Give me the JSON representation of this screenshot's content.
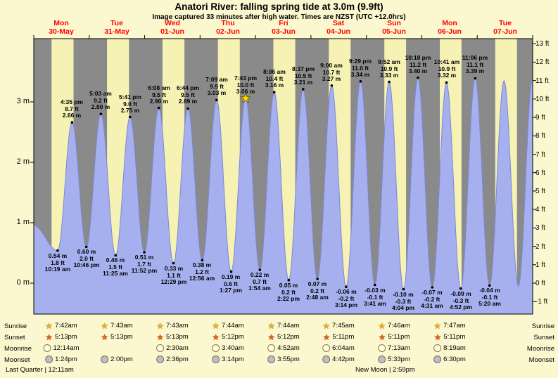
{
  "title": "Anatori River: falling spring tide at 3.0m (9.9ft)",
  "subtitle": "Image captured 33 minutes after high water. Times are NZST (UTC +12.0hrs)",
  "colors": {
    "page_bg": "#FBF8D0",
    "day_band": "#F6F2B4",
    "night_band": "#8A8A8A",
    "tide_fill": "#A6B0EE",
    "tide_stroke": "#7B87D8",
    "day_label_red": "#FF0000",
    "sunrise_star": "#F2AE24",
    "sunset_star": "#DD5F1C",
    "moonrise_circle": "#FDFBE8",
    "moonset_circle": "#BEBEBE",
    "capture_star": "#FFD700"
  },
  "days": [
    {
      "name": "Mon",
      "date": "30-May"
    },
    {
      "name": "Tue",
      "date": "31-May"
    },
    {
      "name": "Wed",
      "date": "01-Jun"
    },
    {
      "name": "Thu",
      "date": "02-Jun"
    },
    {
      "name": "Fri",
      "date": "03-Jun"
    },
    {
      "name": "Sat",
      "date": "04-Jun"
    },
    {
      "name": "Sun",
      "date": "05-Jun"
    },
    {
      "name": "Mon",
      "date": "06-Jun"
    },
    {
      "name": "Tue",
      "date": "07-Jun"
    }
  ],
  "y_axis": {
    "left": [
      "0 m",
      "1 m",
      "2 m",
      "3 m"
    ],
    "right": [
      "-1 ft",
      "0 ft",
      "1 ft",
      "2 ft",
      "3 ft",
      "4 ft",
      "5 ft",
      "6 ft",
      "7 ft",
      "8 ft",
      "9 ft",
      "10 ft",
      "11 ft",
      "12 ft",
      "13 ft"
    ]
  },
  "chart_data": {
    "type": "area",
    "title": "Anatori River tide heights",
    "ylabel_left": "metres",
    "ylabel_right": "feet",
    "y_range_m": [
      -0.51,
      4.05
    ],
    "t_range": [
      0,
      216
    ],
    "grid": false,
    "events": [
      {
        "type": "low",
        "day": "Mon 30-May",
        "time": "10:19 am",
        "m": "0.54",
        "ft": "1.8",
        "t": 10.32
      },
      {
        "type": "high",
        "day": "Mon 30-May",
        "time": "4:35 pm",
        "m": "2.66",
        "ft": "8.7",
        "t": 16.58
      },
      {
        "type": "low",
        "day": "Mon 30-May",
        "time": "10:46 pm",
        "m": "0.60",
        "ft": "2.0",
        "t": 22.77
      },
      {
        "type": "high",
        "day": "Tue 31-May",
        "time": "5:03 am",
        "m": "2.80",
        "ft": "9.2",
        "t": 29.05
      },
      {
        "type": "low",
        "day": "Tue 31-May",
        "time": "11:25 am",
        "m": "0.46",
        "ft": "1.5",
        "t": 35.42
      },
      {
        "type": "high",
        "day": "Tue 31-May",
        "time": "5:41 pm",
        "m": "2.75",
        "ft": "9.0",
        "t": 41.68
      },
      {
        "type": "low",
        "day": "Tue 31-May",
        "time": "11:52 pm",
        "m": "0.51",
        "ft": "1.7",
        "t": 47.87
      },
      {
        "type": "high",
        "day": "Wed 01-Jun",
        "time": "6:08 am",
        "m": "2.90",
        "ft": "9.5",
        "t": 54.13
      },
      {
        "type": "low",
        "day": "Wed 01-Jun",
        "time": "12:29 pm",
        "m": "0.33",
        "ft": "1.1",
        "t": 60.48
      },
      {
        "type": "high",
        "day": "Wed 01-Jun",
        "time": "6:44 pm",
        "m": "2.89",
        "ft": "9.5",
        "t": 66.73
      },
      {
        "type": "low",
        "day": "Thu 02-Jun",
        "time": "12:56 am",
        "m": "0.38",
        "ft": "1.2",
        "t": 72.93
      },
      {
        "type": "high",
        "day": "Thu 02-Jun",
        "time": "7:09 am",
        "m": "3.03",
        "ft": "9.9",
        "t": 79.15
      },
      {
        "type": "low",
        "day": "Thu 02-Jun",
        "time": "1:27 pm",
        "m": "0.19",
        "ft": "0.6",
        "t": 85.45
      },
      {
        "type": "high",
        "day": "Thu 02-Jun",
        "time": "7:43 pm",
        "m": "3.06",
        "ft": "10.0",
        "t": 91.72,
        "marker": "star"
      },
      {
        "type": "low",
        "day": "Fri 03-Jun",
        "time": "1:54 am",
        "m": "0.22",
        "ft": "0.7",
        "t": 97.9
      },
      {
        "type": "high",
        "day": "Fri 03-Jun",
        "time": "8:06 am",
        "m": "3.16",
        "ft": "10.4",
        "t": 104.1
      },
      {
        "type": "low",
        "day": "Fri 03-Jun",
        "time": "2:22 pm",
        "m": "0.05",
        "ft": "0.2",
        "t": 110.37
      },
      {
        "type": "high",
        "day": "Fri 03-Jun",
        "time": "8:37 pm",
        "m": "3.21",
        "ft": "10.5",
        "t": 116.62
      },
      {
        "type": "low",
        "day": "Sat 04-Jun",
        "time": "2:48 am",
        "m": "0.07",
        "ft": "0.2",
        "t": 122.8
      },
      {
        "type": "high",
        "day": "Sat 04-Jun",
        "time": "9:00 am",
        "m": "3.27",
        "ft": "10.7",
        "t": 129.0
      },
      {
        "type": "low",
        "day": "Sat 04-Jun",
        "time": "3:14 pm",
        "m": "-0.06",
        "ft": "-0.2",
        "t": 135.23
      },
      {
        "type": "high",
        "day": "Sat 04-Jun",
        "time": "9:29 pm",
        "m": "3.34",
        "ft": "11.0",
        "t": 141.48
      },
      {
        "type": "low",
        "day": "Sun 05-Jun",
        "time": "3:41 am",
        "m": "-0.03",
        "ft": "-0.1",
        "t": 147.68
      },
      {
        "type": "high",
        "day": "Sun 05-Jun",
        "time": "9:52 am",
        "m": "3.33",
        "ft": "10.9",
        "t": 153.87
      },
      {
        "type": "low",
        "day": "Sun 05-Jun",
        "time": "4:04 pm",
        "m": "-0.10",
        "ft": "-0.3",
        "t": 160.07
      },
      {
        "type": "high",
        "day": "Sun 05-Jun",
        "time": "10:18 pm",
        "m": "3.40",
        "ft": "11.2",
        "t": 166.3
      },
      {
        "type": "low",
        "day": "Mon 06-Jun",
        "time": "4:31 am",
        "m": "-0.07",
        "ft": "-0.2",
        "t": 172.52
      },
      {
        "type": "high",
        "day": "Mon 06-Jun",
        "time": "10:41 am",
        "m": "3.32",
        "ft": "10.9",
        "t": 178.68
      },
      {
        "type": "low",
        "day": "Mon 06-Jun",
        "time": "4:52 pm",
        "m": "-0.09",
        "ft": "-0.3",
        "t": 184.87
      },
      {
        "type": "high",
        "day": "Mon 06-Jun",
        "time": "11:06 pm",
        "m": "3.39",
        "ft": "11.1",
        "t": 191.1
      },
      {
        "type": "low",
        "day": "Tue 07-Jun",
        "time": "5:20 am",
        "m": "-0.04",
        "ft": "-0.1",
        "t": 197.33
      }
    ],
    "edge_anchors": {
      "start": {
        "t": 0,
        "m": 0.95
      },
      "tail": [
        {
          "t": 203.6,
          "m": 3.35
        },
        {
          "t": 209.8,
          "m": -0.05
        },
        {
          "t": 216.0,
          "m": 3.4
        },
        {
          "t": 222.0,
          "m": 0.0
        }
      ]
    }
  },
  "astro": {
    "rows": [
      {
        "label": "Sunrise",
        "icon": "sunrise-star-icon",
        "times": [
          "7:42am",
          "7:43am",
          "7:43am",
          "7:44am",
          "7:44am",
          "7:45am",
          "7:46am",
          "7:47am"
        ]
      },
      {
        "label": "Sunset",
        "icon": "sunset-star-icon",
        "times": [
          "5:13pm",
          "5:13pm",
          "5:13pm",
          "5:12pm",
          "5:12pm",
          "5:11pm",
          "5:11pm",
          "5:11pm"
        ]
      },
      {
        "label": "Moonrise",
        "icon": "moonrise-circle-icon",
        "times": [
          "12:14am",
          "",
          "2:30am",
          "3:40am",
          "4:52am",
          "6:04am",
          "7:13am",
          "8:19am"
        ]
      },
      {
        "label": "Moonset",
        "icon": "moonset-circle-icon",
        "times": [
          "1:24pm",
          "2:00pm",
          "2:36pm",
          "3:14pm",
          "3:55pm",
          "4:42pm",
          "5:33pm",
          "6:30pm"
        ]
      }
    ],
    "moon_phases": [
      {
        "text": "Last Quarter | 12:11am"
      },
      {
        "text": "New Moon | 2:59pm"
      }
    ]
  }
}
